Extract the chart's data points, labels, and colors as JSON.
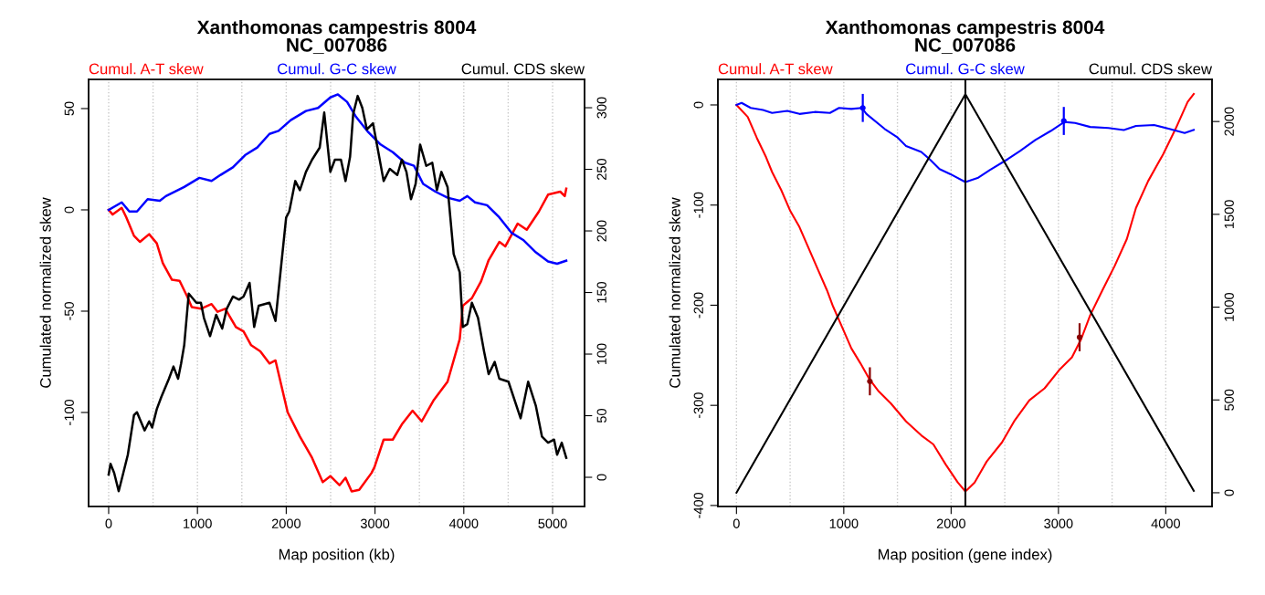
{
  "chart_data": [
    {
      "type": "line",
      "title": "Xanthomonas campestris 8004\nNC_007086",
      "xlabel": "Map position (kb)",
      "ylabel": "Cumulated normalized skew",
      "legend": "top",
      "grid": "x",
      "xlim": [
        -226,
        5360
      ],
      "xticks": [
        0,
        {
          "value": 500,
          "label": null
        },
        1000,
        {
          "value": 1500,
          "label": null
        },
        2000,
        {
          "value": 2500,
          "label": null
        },
        3000,
        {
          "value": 3500,
          "label": null
        },
        4000,
        {
          "value": 4500,
          "label": null
        },
        5000
      ],
      "ylim": [
        -146.4,
        64.4
      ],
      "yticks": [
        -100,
        -50,
        0,
        50
      ],
      "y2lim": [
        -23.7,
        323
      ],
      "y2ticks": [
        0,
        50,
        100,
        150,
        200,
        250,
        300
      ],
      "series": [
        {
          "name": "Cumul. A-T skew",
          "color": "#ff0000",
          "x": [
            0,
            45,
            147,
            199,
            285,
            353,
            456,
            542,
            610,
            713,
            799,
            885,
            936,
            1039,
            1159,
            1227,
            1313,
            1433,
            1519,
            1605,
            1708,
            1811,
            1879,
            2016,
            2154,
            2291,
            2411,
            2497,
            2600,
            2668,
            2737,
            2822,
            2960,
            2994,
            3097,
            3200,
            3302,
            3423,
            3526,
            3663,
            3817,
            3954,
            3989,
            4091,
            4194,
            4280,
            4400,
            4468,
            4606,
            4709,
            4846,
            4949,
            5086,
            5137,
            5154
          ],
          "values": [
            0,
            -2.3,
            1,
            -3.7,
            -12.8,
            -15.8,
            -12,
            -16.5,
            -26.3,
            -34.5,
            -35,
            -42.8,
            -48,
            -48.8,
            -46.5,
            -50.3,
            -48.8,
            -57.8,
            -60,
            -66.8,
            -69.8,
            -75.8,
            -74.3,
            -99.9,
            -111.9,
            -122.4,
            -134.4,
            -131.4,
            -135.9,
            -132.2,
            -139,
            -138.2,
            -129.9,
            -127,
            -113.4,
            -113.4,
            -105.9,
            -99.1,
            -104.4,
            -93.8,
            -84.8,
            -63.8,
            -47.3,
            -43.6,
            -35.3,
            -24.8,
            -15.8,
            -18,
            -6.8,
            -9.8,
            -0.8,
            7.5,
            9,
            6.8,
            10.5
          ]
        },
        {
          "name": "Cumul. G-C skew",
          "color": "#0000ff",
          "x": [
            0,
            147,
            233,
            319,
            439,
            576,
            645,
            748,
            851,
            1022,
            1159,
            1262,
            1399,
            1536,
            1674,
            1811,
            1914,
            2051,
            2222,
            2359,
            2497,
            2582,
            2685,
            2788,
            2925,
            3062,
            3200,
            3337,
            3439,
            3542,
            3680,
            3817,
            3954,
            4040,
            4126,
            4262,
            4400,
            4537,
            4674,
            4812,
            4949,
            5051,
            5154
          ],
          "values": [
            0,
            3.7,
            -0.8,
            -0.8,
            5.3,
            4.5,
            6.8,
            9,
            11.3,
            15.8,
            14.3,
            17.3,
            21,
            27,
            30.8,
            37.5,
            39,
            44.3,
            48.8,
            50.3,
            55.5,
            57,
            53.3,
            45.8,
            38.3,
            32.3,
            28.5,
            23.3,
            21.8,
            12.8,
            9,
            6,
            4.5,
            6.8,
            3.7,
            2.3,
            -3.7,
            -11.3,
            -15,
            -21,
            -25.5,
            -26.6,
            -25.1
          ]
        },
        {
          "name": "Cumul. CDS skew",
          "color": "#000000",
          "axis": "y2",
          "x": [
            0,
            21,
            62,
            113,
            165,
            216,
            285,
            319,
            405,
            456,
            490,
            542,
            593,
            679,
            730,
            782,
            816,
            851,
            902,
            988,
            1039,
            1073,
            1142,
            1211,
            1279,
            1330,
            1399,
            1468,
            1519,
            1587,
            1639,
            1690,
            1811,
            1879,
            1914,
            1999,
            2034,
            2102,
            2154,
            2222,
            2291,
            2377,
            2428,
            2497,
            2548,
            2616,
            2668,
            2719,
            2754,
            2805,
            2857,
            2908,
            2977,
            3028,
            3097,
            3166,
            3251,
            3302,
            3354,
            3405,
            3457,
            3508,
            3577,
            3645,
            3697,
            3748,
            3817,
            3886,
            3954,
            3989,
            4040,
            4091,
            4160,
            4228,
            4280,
            4348,
            4400,
            4503,
            4640,
            4725,
            4812,
            4880,
            4949,
            5017,
            5051,
            5103,
            5154
          ],
          "values": [
            2.2,
            10.9,
            3.5,
            -11.3,
            3.5,
            18.3,
            50.4,
            52.8,
            38,
            45.4,
            40.5,
            55.3,
            65.2,
            80,
            89.9,
            80,
            92.4,
            107.2,
            149.1,
            141.7,
            141.7,
            129.4,
            114.6,
            131.9,
            120.7,
            136.8,
            146.7,
            144.2,
            146.7,
            157.8,
            122,
            139.3,
            141.7,
            126.9,
            151.6,
            210.9,
            215.8,
            240.5,
            233.1,
            247.9,
            257.8,
            267.6,
            296.1,
            247.9,
            257.8,
            257.8,
            240.5,
            260.2,
            294.8,
            309.6,
            299.8,
            282.4,
            287.4,
            267.6,
            240.5,
            250.4,
            245.4,
            257.8,
            247.9,
            225.7,
            238,
            270.1,
            252.8,
            255.3,
            233.1,
            247.9,
            235.6,
            181.3,
            166.4,
            122,
            124.4,
            141.7,
            129.4,
            102.2,
            83.7,
            93.6,
            80,
            77.6,
            47.9,
            77.6,
            57.8,
            33.1,
            28.1,
            30.6,
            18.3,
            28.1,
            15.8
          ]
        }
      ]
    },
    {
      "type": "line",
      "title": "Xanthomonas campestris 8004\nNC_007086",
      "xlabel": "Map position (gene index)",
      "ylabel": "Cumulated normalized skew",
      "legend": "top",
      "grid": "x",
      "xlim": [
        -173,
        4431
      ],
      "xticks": [
        0,
        {
          "value": 500,
          "label": null
        },
        1000,
        {
          "value": 1500,
          "label": null
        },
        2000,
        {
          "value": 2500,
          "label": null
        },
        3000,
        {
          "value": 3500,
          "label": null
        },
        4000
      ],
      "ylim": [
        -401,
        25.5
      ],
      "yticks": [
        -400,
        -300,
        -200,
        -100,
        0
      ],
      "y2lim": [
        -74,
        2227
      ],
      "y2ticks": [
        0,
        500,
        1000,
        1500,
        2000
      ],
      "ref_lines": [
        {
          "axis": "x",
          "value": 2133,
          "color": "#000000"
        }
      ],
      "series": [
        {
          "name": "Cumul. A-T skew",
          "color": "#ff0000",
          "x": [
            0,
            105,
            190,
            275,
            332,
            417,
            502,
            587,
            672,
            757,
            843,
            899,
            985,
            1070,
            1155,
            1240,
            1325,
            1438,
            1580,
            1722,
            1835,
            1949,
            2062,
            2133,
            2219,
            2332,
            2474,
            2587,
            2729,
            2871,
            3013,
            3126,
            3211,
            3296,
            3410,
            3523,
            3637,
            3722,
            3836,
            3977,
            4091,
            4204,
            4261
          ],
          "values": [
            0,
            -12,
            -33,
            -52,
            -67,
            -85,
            -106,
            -122,
            -143,
            -164,
            -185,
            -201,
            -222,
            -243,
            -258,
            -274,
            -286,
            -298,
            -316,
            -330,
            -339,
            -359,
            -377,
            -386,
            -377,
            -356,
            -337,
            -316,
            -295,
            -283,
            -264,
            -252,
            -234,
            -210,
            -185,
            -161,
            -134,
            -103,
            -76,
            -49,
            -24,
            3,
            11
          ]
        },
        {
          "name": "Cumul. G-C skew",
          "color": "#0000ff",
          "x": [
            0,
            48,
            133,
            247,
            332,
            474,
            587,
            729,
            871,
            956,
            1070,
            1169,
            1211,
            1381,
            1495,
            1580,
            1722,
            1807,
            1892,
            1991,
            2133,
            2247,
            2360,
            2530,
            2643,
            2785,
            2928,
            3055,
            3155,
            3296,
            3466,
            3609,
            3722,
            3891,
            4034,
            4176,
            4261
          ],
          "values": [
            0,
            2,
            -3,
            -5,
            -8,
            -6,
            -9,
            -7,
            -8,
            -3,
            -4,
            -3,
            -9,
            -24,
            -32,
            -41,
            -47,
            -55,
            -64,
            -69,
            -77,
            -73,
            -65,
            -54,
            -46,
            -35,
            -26,
            -17,
            -18,
            -22,
            -23,
            -25,
            -21,
            -20,
            -24,
            -28,
            -25
          ]
        },
        {
          "name": "Cumul. CDS skew",
          "color": "#000000",
          "axis": "y2",
          "x": [
            0,
            2133,
            4261
          ],
          "values": [
            0,
            2147,
            10
          ]
        },
        {
          "type": "scatter",
          "marker": "circle",
          "color": "#0000ff",
          "x": [
            1177,
            3050
          ],
          "values": [
            -3,
            -16
          ],
          "errors": [
            14,
            14
          ]
        },
        {
          "type": "scatter",
          "marker": "circle",
          "color": "#8b0000",
          "x": [
            1243,
            3197
          ],
          "values": [
            -276,
            -232
          ],
          "errors": [
            14,
            14
          ]
        }
      ]
    }
  ]
}
